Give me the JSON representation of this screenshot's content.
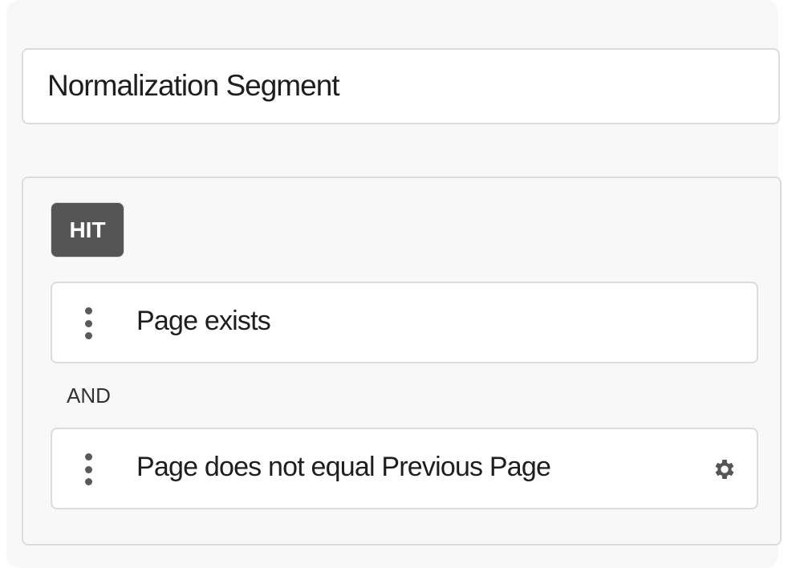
{
  "segment": {
    "title": "Normalization Segment"
  },
  "container": {
    "scope_badge": "HIT",
    "rules": [
      {
        "label": "Page exists",
        "has_settings": false
      },
      {
        "label": "Page does not equal Previous Page",
        "has_settings": true,
        "settings_icon": "gear-icon"
      }
    ],
    "operator": "AND"
  },
  "colors": {
    "badge_bg": "#555555",
    "icon": "#5a5a5a"
  }
}
